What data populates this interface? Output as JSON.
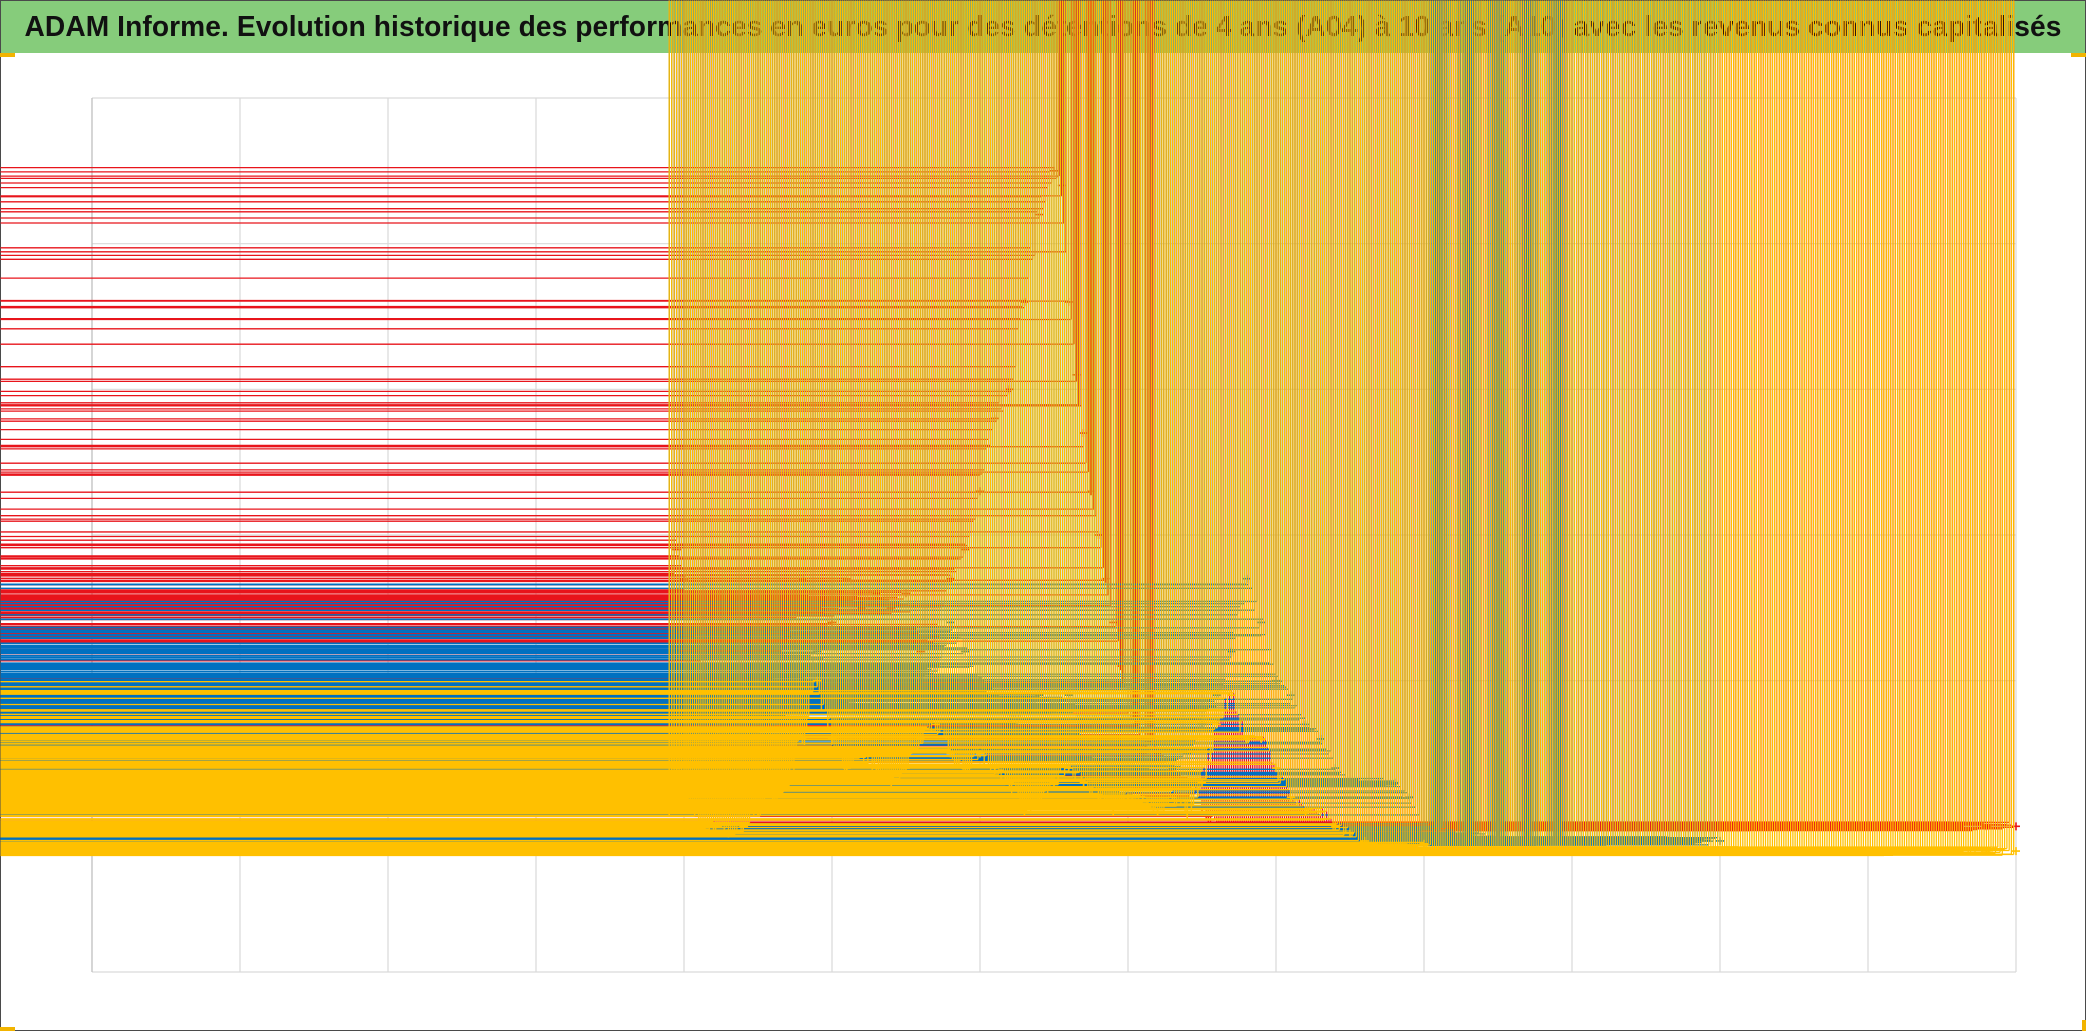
{
  "title": "ADAM Informe. Evolution historique des performances en euros pour des détentions de 4 ans (A04) à 10 ans (A10) avec les revenus connus capitalisés",
  "colors": {
    "title_background": "#86cc7b",
    "grid": "#d9d9d9",
    "zero_line": "#bfbfbf",
    "corner_marks": "#f2b400"
  },
  "chart_data": {
    "type": "scatter",
    "marker": "plus",
    "title": "ADAM Informe. Evolution historique des performances en euros pour des détentions de 4 ans (A04) à 10 ans (A10) avec les revenus connus capitalisés",
    "xlabel": "",
    "ylabel": "",
    "tick_labels_visible": false,
    "legend_visible": false,
    "grid": true,
    "x_gridlines": 13,
    "y_gridlines": 6,
    "xlim": [
      0,
      13
    ],
    "ylim": [
      -1.1,
      4.9
    ],
    "series": [
      {
        "color": "#e8141b",
        "x": [
          3.9,
          3.95,
          4.0,
          4.1,
          4.2,
          4.3,
          4.4,
          4.5,
          4.6,
          4.7,
          4.8,
          4.9,
          5.0,
          5.1,
          5.2,
          5.3,
          5.4,
          5.5,
          5.6,
          5.7,
          5.8,
          5.9,
          6.0,
          6.1,
          6.2,
          6.3,
          6.4,
          6.5,
          6.55,
          6.6,
          6.65,
          6.7,
          6.75,
          6.8,
          6.85,
          6.9,
          6.95,
          7.0,
          7.05,
          7.1,
          7.15,
          7.2,
          7.3,
          7.4,
          7.5,
          7.6,
          7.7,
          7.8,
          7.9,
          8.0,
          8.1,
          8.2,
          8.3,
          8.4,
          8.5,
          8.6,
          8.7,
          8.8,
          8.9,
          9.0,
          9.1,
          9.2,
          9.3,
          9.4,
          9.5,
          9.6,
          9.7,
          9.8,
          9.9,
          10.0,
          10.2,
          10.4,
          10.6,
          10.8,
          11.0,
          11.2,
          11.4,
          11.6,
          11.8,
          12.0,
          12.2,
          12.4,
          12.6,
          12.8,
          13.0
        ],
        "y": [
          1.2,
          1.8,
          1.6,
          1.1,
          0.5,
          0.8,
          0.7,
          0.6,
          0.9,
          1.2,
          1.6,
          1.4,
          1.3,
          1.6,
          1.4,
          1.5,
          1.4,
          1.5,
          1.1,
          1.2,
          1.6,
          1.8,
          2.2,
          2.7,
          2.9,
          3.5,
          4.1,
          4.4,
          4.3,
          3.5,
          3.0,
          2.6,
          2.2,
          1.9,
          1.6,
          1.3,
          1.0,
          0.7,
          0.6,
          0.4,
          0.5,
          0.4,
          0.3,
          0.2,
          0.0,
          -0.1,
          -0.15,
          -0.17,
          -0.18,
          -0.17,
          -0.15,
          -0.15,
          -0.1,
          -0.1,
          -0.1,
          -0.1,
          -0.1,
          -0.1,
          -0.1,
          -0.1,
          -0.1,
          -0.1,
          -0.1,
          -0.1,
          -0.1,
          -0.1,
          -0.1,
          -0.1,
          -0.1,
          -0.1,
          -0.1,
          -0.1,
          -0.1,
          -0.1,
          -0.1,
          -0.1,
          -0.1,
          -0.1,
          -0.1,
          -0.1,
          -0.1,
          -0.1,
          -0.1,
          -0.1,
          -0.1
        ]
      },
      {
        "color": "#0070c0",
        "x": [
          3.9,
          3.95,
          4.0,
          4.1,
          4.2,
          4.3,
          4.4,
          4.5,
          4.6,
          4.7,
          4.8,
          4.9,
          5.0,
          5.1,
          5.2,
          5.3,
          5.4,
          5.5,
          5.6,
          5.7,
          5.8,
          5.9,
          6.0,
          6.1,
          6.2,
          6.3,
          6.4,
          6.5,
          6.6,
          6.7,
          6.8,
          6.9,
          7.0,
          7.1,
          7.2,
          7.3,
          7.4,
          7.5,
          7.6,
          7.7,
          7.8,
          7.9,
          8.0,
          8.1,
          8.2,
          8.3,
          8.4,
          8.5,
          8.6,
          8.7,
          8.8,
          8.9,
          9.0,
          9.2,
          9.4,
          9.6,
          9.8,
          10.0,
          10.2,
          10.4,
          10.6,
          10.8,
          11.0
        ],
        "y": [
          0.7,
          1.2,
          0.9,
          0.2,
          0.4,
          0.3,
          0.1,
          0.5,
          0.6,
          0.7,
          0.9,
          1.1,
          0.8,
          0.7,
          0.8,
          0.7,
          0.8,
          0.8,
          0.9,
          1.0,
          1.3,
          1.1,
          0.9,
          0.8,
          0.6,
          0.7,
          0.8,
          0.7,
          0.8,
          0.5,
          0.3,
          0.2,
          0.1,
          0.3,
          0.2,
          0.3,
          0.4,
          0.6,
          0.8,
          1.1,
          1.6,
          1.3,
          0.9,
          0.8,
          0.6,
          0.5,
          0.3,
          0.2,
          0.2,
          0.2,
          0.2,
          0.1,
          -0.1,
          -0.15,
          -0.18,
          -0.2,
          -0.2,
          -0.2,
          -0.2,
          -0.2,
          -0.2,
          -0.2,
          -0.2
        ]
      },
      {
        "color": "#ffc000",
        "x": [
          3.9,
          3.95,
          4.0,
          4.1,
          4.2,
          4.3,
          4.4,
          4.5,
          4.6,
          4.7,
          4.8,
          4.9,
          5.0,
          5.1,
          5.2,
          5.3,
          5.4,
          5.5,
          5.6,
          5.7,
          5.8,
          5.9,
          6.0,
          6.1,
          6.2,
          6.3,
          6.4,
          6.5,
          6.6,
          6.7,
          6.8,
          6.9,
          7.0,
          7.1,
          7.2,
          7.3,
          7.4,
          7.5,
          7.6,
          7.7,
          7.8,
          7.9,
          8.0,
          8.1,
          8.2,
          8.3,
          8.4,
          8.5,
          8.6,
          8.7,
          8.8,
          8.9,
          9.0,
          9.1,
          9.2,
          9.3,
          9.4,
          9.5,
          9.6,
          9.7,
          9.8,
          9.9,
          10.0,
          10.2,
          10.4,
          10.6,
          10.8,
          11.0,
          11.2,
          11.4,
          11.6,
          11.8,
          12.0,
          12.2,
          12.4,
          12.6,
          12.8,
          13.0
        ],
        "y": [
          0.0,
          0.3,
          0.2,
          -0.1,
          -0.1,
          -0.15,
          -0.1,
          0.0,
          0.1,
          0.2,
          0.5,
          0.9,
          0.5,
          0.3,
          0.4,
          0.3,
          0.2,
          0.3,
          0.5,
          0.6,
          0.4,
          0.3,
          0.4,
          0.3,
          0.2,
          0.0,
          0.1,
          0.2,
          0.3,
          0.2,
          0.1,
          0.0,
          0.1,
          0.1,
          0.0,
          0.1,
          0.0,
          0.2,
          0.6,
          0.8,
          0.5,
          0.5,
          0.3,
          0.1,
          0.0,
          0.0,
          -0.1,
          -0.15,
          -0.2,
          -0.25,
          -0.27,
          -0.25,
          -0.22,
          -0.27,
          -0.27,
          -0.27,
          -0.27,
          -0.27,
          -0.27,
          -0.27,
          -0.27,
          -0.27,
          -0.27,
          -0.27,
          -0.27,
          -0.27,
          -0.27,
          -0.27,
          -0.27,
          -0.27,
          -0.27,
          -0.27,
          -0.27,
          -0.27,
          -0.27,
          -0.27,
          -0.27,
          -0.27
        ]
      }
    ]
  }
}
